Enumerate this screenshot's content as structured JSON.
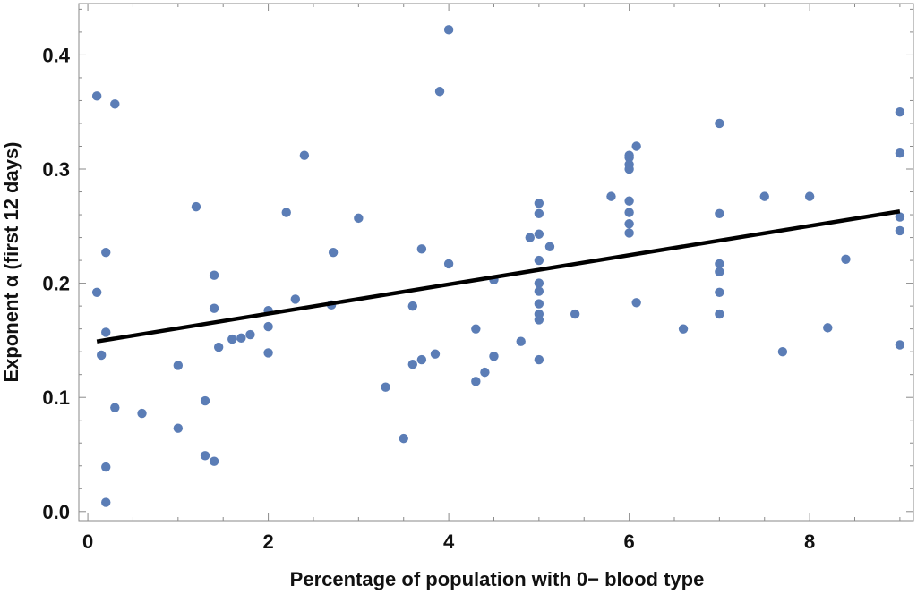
{
  "chart_data": {
    "type": "scatter",
    "xlabel": "Percentage of population with 0− blood type",
    "ylabel": "Exponent α (first 12 days)",
    "xlim": [
      -0.1,
      9.15
    ],
    "ylim": [
      -0.008,
      0.445
    ],
    "x_ticks": [
      "0",
      "2",
      "4",
      "6",
      "8"
    ],
    "y_ticks": [
      "0.0",
      "0.1",
      "0.2",
      "0.3",
      "0.4"
    ],
    "grid": false,
    "point_color": "#5b7db6",
    "line_color": "#000000",
    "fit_line": {
      "x": [
        0.1,
        9.0
      ],
      "y": [
        0.149,
        0.263
      ]
    },
    "points": [
      [
        0.1,
        0.364
      ],
      [
        0.1,
        0.192
      ],
      [
        0.3,
        0.357
      ],
      [
        0.2,
        0.227
      ],
      [
        0.2,
        0.157
      ],
      [
        0.15,
        0.137
      ],
      [
        0.3,
        0.091
      ],
      [
        0.2,
        0.039
      ],
      [
        0.2,
        0.008
      ],
      [
        0.6,
        0.086
      ],
      [
        1.0,
        0.128
      ],
      [
        1.0,
        0.073
      ],
      [
        1.2,
        0.267
      ],
      [
        1.3,
        0.097
      ],
      [
        1.3,
        0.049
      ],
      [
        1.4,
        0.044
      ],
      [
        1.4,
        0.207
      ],
      [
        1.4,
        0.178
      ],
      [
        1.45,
        0.144
      ],
      [
        1.6,
        0.151
      ],
      [
        1.7,
        0.152
      ],
      [
        1.8,
        0.155
      ],
      [
        2.0,
        0.176
      ],
      [
        2.0,
        0.162
      ],
      [
        2.0,
        0.139
      ],
      [
        2.2,
        0.262
      ],
      [
        2.3,
        0.186
      ],
      [
        2.4,
        0.312
      ],
      [
        2.7,
        0.181
      ],
      [
        2.72,
        0.227
      ],
      [
        3.0,
        0.257
      ],
      [
        3.3,
        0.109
      ],
      [
        3.5,
        0.064
      ],
      [
        3.6,
        0.129
      ],
      [
        3.6,
        0.18
      ],
      [
        3.7,
        0.133
      ],
      [
        3.7,
        0.23
      ],
      [
        3.85,
        0.138
      ],
      [
        3.9,
        0.368
      ],
      [
        4.0,
        0.422
      ],
      [
        4.0,
        0.217
      ],
      [
        4.3,
        0.114
      ],
      [
        4.3,
        0.16
      ],
      [
        4.4,
        0.122
      ],
      [
        4.5,
        0.136
      ],
      [
        4.5,
        0.203
      ],
      [
        4.8,
        0.149
      ],
      [
        4.9,
        0.24
      ],
      [
        5.0,
        0.27
      ],
      [
        5.0,
        0.261
      ],
      [
        5.0,
        0.243
      ],
      [
        5.0,
        0.22
      ],
      [
        5.0,
        0.2
      ],
      [
        5.0,
        0.193
      ],
      [
        5.0,
        0.182
      ],
      [
        5.0,
        0.173
      ],
      [
        5.0,
        0.168
      ],
      [
        5.0,
        0.133
      ],
      [
        5.12,
        0.232
      ],
      [
        5.4,
        0.173
      ],
      [
        5.8,
        0.276
      ],
      [
        6.0,
        0.312
      ],
      [
        6.0,
        0.31
      ],
      [
        6.0,
        0.304
      ],
      [
        6.0,
        0.3
      ],
      [
        6.0,
        0.272
      ],
      [
        6.0,
        0.262
      ],
      [
        6.0,
        0.252
      ],
      [
        6.0,
        0.244
      ],
      [
        6.08,
        0.32
      ],
      [
        6.08,
        0.183
      ],
      [
        6.6,
        0.16
      ],
      [
        7.0,
        0.34
      ],
      [
        7.0,
        0.261
      ],
      [
        7.0,
        0.217
      ],
      [
        7.0,
        0.21
      ],
      [
        7.0,
        0.192
      ],
      [
        7.0,
        0.173
      ],
      [
        7.5,
        0.276
      ],
      [
        7.7,
        0.14
      ],
      [
        8.0,
        0.276
      ],
      [
        8.2,
        0.161
      ],
      [
        8.4,
        0.221
      ],
      [
        9.0,
        0.35
      ],
      [
        9.0,
        0.314
      ],
      [
        9.0,
        0.258
      ],
      [
        9.0,
        0.246
      ],
      [
        9.0,
        0.146
      ]
    ]
  }
}
